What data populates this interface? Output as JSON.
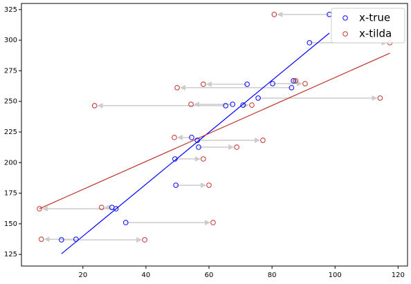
{
  "chart_data": {
    "type": "scatter",
    "xlim": [
      0.5,
      123
    ],
    "xticks": [
      20,
      40,
      60,
      80,
      100,
      120
    ],
    "ylim": [
      115.5,
      330
    ],
    "yticks": [
      125,
      150,
      175,
      200,
      225,
      250,
      275,
      300,
      325
    ],
    "legend": "upper right",
    "arrow_color": "#cccccc",
    "series": [
      {
        "name": "x-true",
        "color": "#0000ff",
        "x": [
          98.2,
          91.9,
          72.1,
          80.2,
          86.2,
          86.8,
          75.6,
          67.5,
          65.3,
          70.8,
          54.5,
          56.3,
          56.7,
          49.2,
          49.5,
          30.5,
          29.2,
          33.6,
          17.8,
          13.2
        ],
        "y": [
          321.0,
          297.9,
          264.0,
          264.5,
          261.2,
          266.8,
          252.7,
          247.6,
          246.5,
          247.0,
          220.5,
          218.2,
          212.6,
          203.0,
          181.5,
          162.3,
          163.4,
          151.0,
          137.4,
          136.9
        ],
        "fit": {
          "x": [
            13.2,
            98.2
          ],
          "y": [
            125.5,
            305.8
          ]
        }
      },
      {
        "name": "x-tilda",
        "color": "#c0302a",
        "x": [
          80.7,
          117.4,
          58.2,
          90.5,
          49.9,
          87.5,
          114.3,
          54.3,
          23.7,
          73.6,
          49.0,
          77.1,
          68.8,
          58.2,
          60.0,
          6.2,
          25.9,
          61.3,
          6.8,
          39.6
        ],
        "y": [
          321.0,
          297.9,
          264.0,
          264.5,
          261.2,
          266.8,
          252.7,
          247.6,
          246.5,
          247.0,
          220.5,
          218.2,
          212.6,
          203.0,
          181.5,
          162.3,
          163.4,
          151.0,
          137.4,
          136.9
        ],
        "fit": {
          "x": [
            6.2,
            117.4
          ],
          "y": [
            162.3,
            289.4
          ]
        }
      }
    ]
  }
}
